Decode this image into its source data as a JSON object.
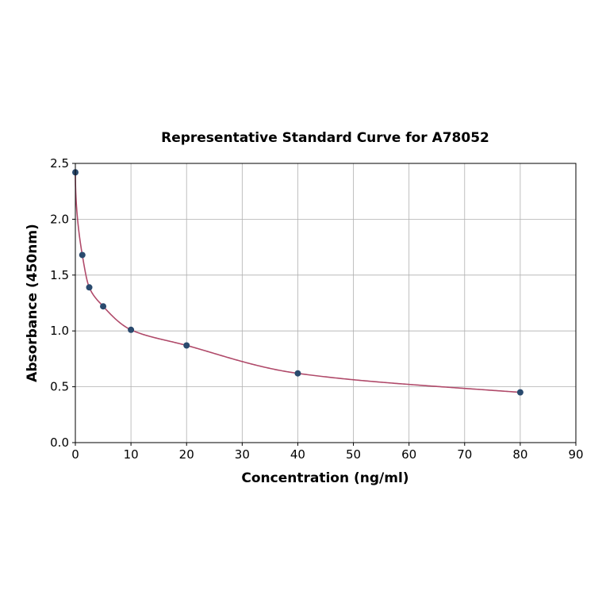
{
  "chart_data": {
    "type": "scatter",
    "title": "Representative Standard Curve for A78052",
    "xlabel": "Concentration (ng/ml)",
    "ylabel": "Absorbance (450nm)",
    "xlim": [
      0,
      90
    ],
    "ylim": [
      0,
      2.5
    ],
    "xticks": [
      "0",
      "10",
      "20",
      "30",
      "40",
      "50",
      "60",
      "70",
      "80",
      "90"
    ],
    "yticks": [
      "0.0",
      "0.5",
      "1.0",
      "1.5",
      "2.0",
      "2.5"
    ],
    "grid": true,
    "points": {
      "x": [
        0,
        1.25,
        2.5,
        5,
        10,
        20,
        40,
        80
      ],
      "y": [
        2.42,
        1.68,
        1.39,
        1.22,
        1.01,
        0.87,
        0.62,
        0.45
      ]
    },
    "fit_line": true,
    "colors": {
      "points": "#2a4a6e",
      "curve": "#b04a6a",
      "grid": "#b0b0b0"
    }
  }
}
